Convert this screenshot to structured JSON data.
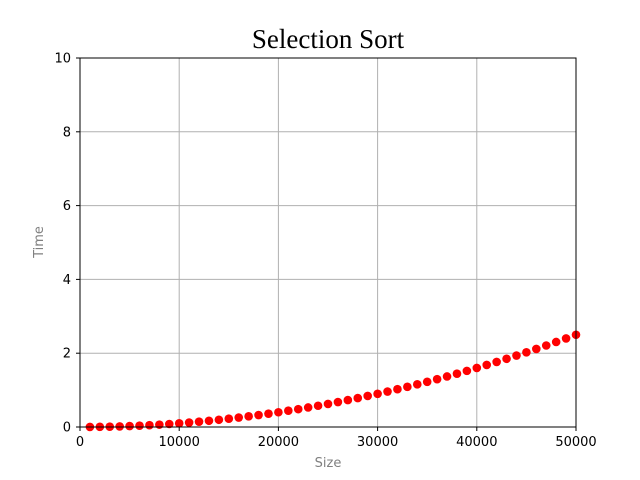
{
  "chart_data": {
    "type": "scatter",
    "title": "Selection Sort",
    "xlabel": "Size",
    "ylabel": "Time",
    "xlim": [
      0,
      50000
    ],
    "ylim": [
      0,
      10
    ],
    "xticks": [
      "0",
      "10000",
      "20000",
      "30000",
      "40000",
      "50000"
    ],
    "yticks": [
      "0",
      "2",
      "4",
      "6",
      "8",
      "10"
    ],
    "grid": true,
    "legend": "none",
    "marker_color": "#ff0000",
    "grid_color": "#b0b0b0",
    "series": [
      {
        "x": [
          1000,
          2000,
          3000,
          4000,
          5000,
          6000,
          7000,
          8000,
          9000,
          10000,
          11000,
          12000,
          13000,
          14000,
          15000,
          16000,
          17000,
          18000,
          19000,
          20000,
          21000,
          22000,
          23000,
          24000,
          25000,
          26000,
          27000,
          28000,
          29000,
          30000,
          31000,
          32000,
          33000,
          34000,
          35000,
          36000,
          37000,
          38000,
          39000,
          40000,
          41000,
          42000,
          43000,
          44000,
          45000,
          46000,
          47000,
          48000,
          49000,
          50000
        ],
        "y": [
          0.001,
          0.004,
          0.009,
          0.016,
          0.025,
          0.036,
          0.049,
          0.064,
          0.081,
          0.1,
          0.121,
          0.144,
          0.169,
          0.196,
          0.225,
          0.256,
          0.289,
          0.324,
          0.361,
          0.4,
          0.441,
          0.484,
          0.529,
          0.576,
          0.625,
          0.676,
          0.729,
          0.784,
          0.841,
          0.9,
          0.961,
          1.024,
          1.089,
          1.156,
          1.225,
          1.296,
          1.369,
          1.444,
          1.521,
          1.6,
          1.681,
          1.764,
          1.849,
          1.936,
          2.025,
          2.116,
          2.209,
          2.304,
          2.401,
          2.5
        ]
      }
    ]
  }
}
